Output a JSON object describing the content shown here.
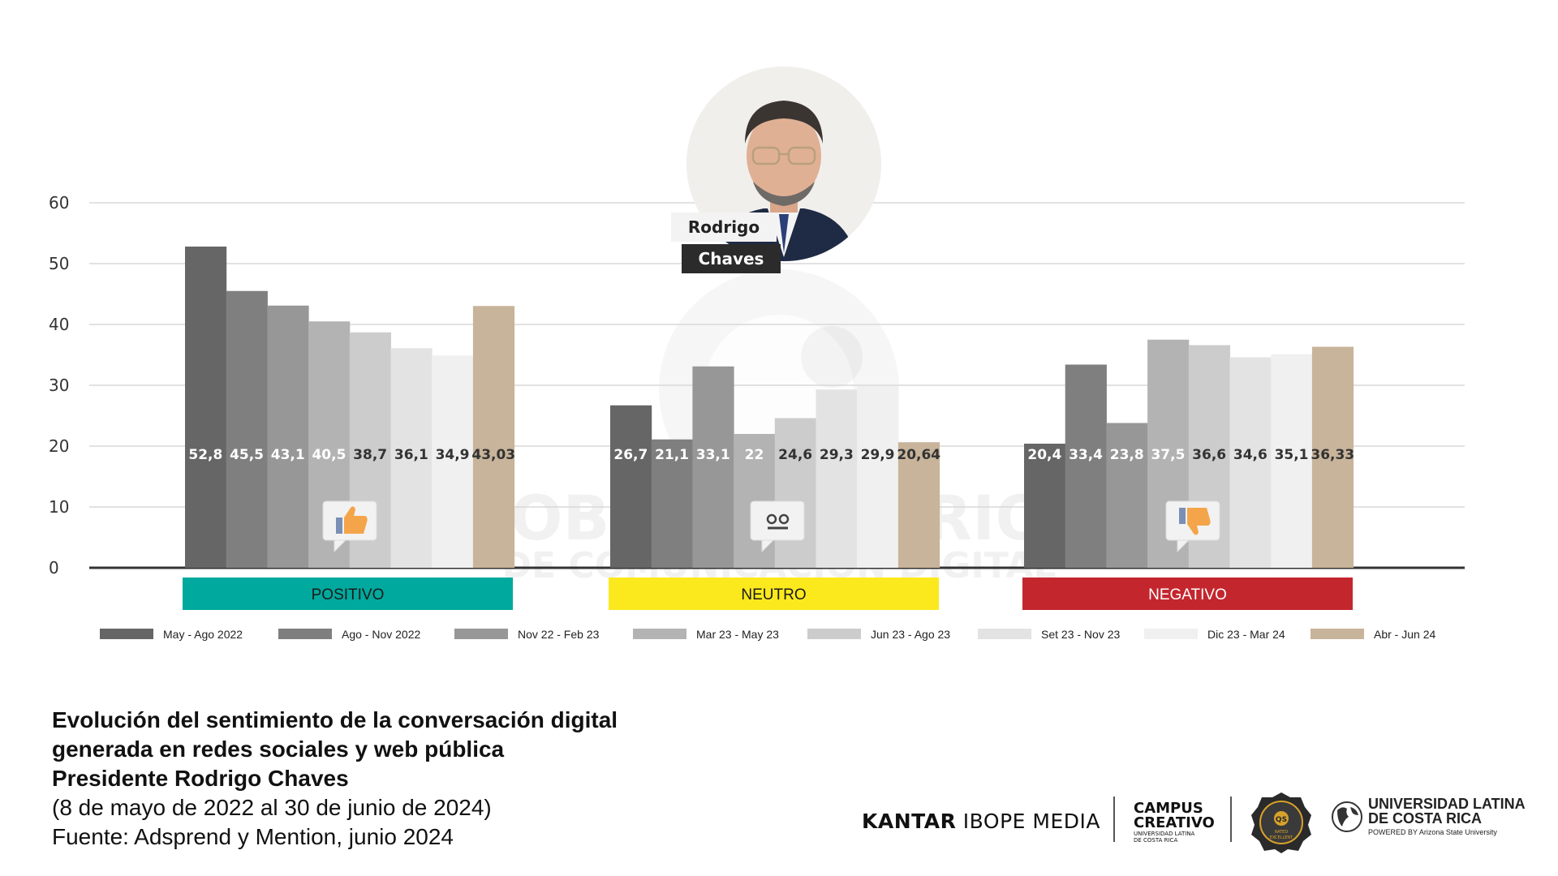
{
  "chart_data": {
    "type": "bar",
    "title": "",
    "xlabel": "",
    "ylabel": "",
    "ylim": [
      0,
      60
    ],
    "yticks": [
      0,
      10,
      20,
      30,
      40,
      50,
      60
    ],
    "grid": true,
    "legend_position": "bottom",
    "categories": [
      "POSITIVO",
      "NEUTRO",
      "NEGATIVO"
    ],
    "category_colors": [
      "#00a99d",
      "#fbe91d",
      "#c4262e"
    ],
    "category_text_colors": [
      "#1a1a1a",
      "#1a1a1a",
      "#ffffff"
    ],
    "series": [
      {
        "name": "May - Ago 2022",
        "color": "#666666",
        "label_color": "#ffffff",
        "values": [
          52.8,
          26.7,
          20.4
        ],
        "labels": [
          "52,8",
          "26,7",
          "20,4"
        ]
      },
      {
        "name": "Ago - Nov 2022",
        "color": "#7f7f7f",
        "label_color": "#ffffff",
        "values": [
          45.5,
          21.1,
          33.4
        ],
        "labels": [
          "45,5",
          "21,1",
          "33,4"
        ]
      },
      {
        "name": "Nov 22 - Feb 23",
        "color": "#979797",
        "label_color": "#ffffff",
        "values": [
          43.1,
          33.1,
          23.8
        ],
        "labels": [
          "43,1",
          "33,1",
          "23,8"
        ]
      },
      {
        "name": "Mar 23 - May 23",
        "color": "#b3b3b3",
        "label_color": "#ffffff",
        "values": [
          40.5,
          22,
          37.5
        ],
        "labels": [
          "40,5",
          "22",
          "37,5"
        ]
      },
      {
        "name": "Jun 23 - Ago 23",
        "color": "#cccccc",
        "label_color": "#333333",
        "values": [
          38.7,
          24.6,
          36.6
        ],
        "labels": [
          "38,7",
          "24,6",
          "36,6"
        ]
      },
      {
        "name": "Set 23 - Nov 23",
        "color": "#e3e3e3",
        "label_color": "#333333",
        "values": [
          36.1,
          29.3,
          34.6
        ],
        "labels": [
          "36,1",
          "29,3",
          "34,6"
        ]
      },
      {
        "name": "Dic 23 - Mar 24",
        "color": "#f0f0f0",
        "label_color": "#333333",
        "values": [
          34.9,
          29.9,
          35.1
        ],
        "labels": [
          "34,9",
          "29,9",
          "35,1"
        ]
      },
      {
        "name": "Abr - Jun 24",
        "color": "#c8b49a",
        "label_color": "#333333",
        "values": [
          43.03,
          20.64,
          36.33
        ],
        "labels": [
          "43,03",
          "20,64",
          "36,33"
        ]
      }
    ]
  },
  "portrait": {
    "first_name": "Rodrigo",
    "last_name": "Chaves"
  },
  "watermark": {
    "line1": "OBSERVATORIO",
    "line2": "DE COMUNICACIÓN DIGITAL"
  },
  "caption": {
    "title_line1": "Evolución del sentimiento de la conversación digital",
    "title_line2": "generada en redes sociales y web pública",
    "title_line3": "Presidente Rodrigo Chaves",
    "date_range": "(8 de mayo de 2022 al 30 de junio de 2024)",
    "source": "Fuente: Adsprend y Mention, junio 2024"
  },
  "logos": {
    "kantar_bold": "KANTAR",
    "kantar_rest": " IBOPE MEDIA",
    "campus_line1": "CAMPUS",
    "campus_line2": "CREATIVO",
    "campus_line3": "UNIVERSIDAD LATINA",
    "campus_line4": "DE COSTA RICA",
    "badge_text": "QS",
    "badge_sub1": "RATED",
    "badge_sub2": "EXCELLENT",
    "ulatina_line1": "UNIVERSIDAD LATINA",
    "ulatina_line2": "DE COSTA RICA",
    "ulatina_line3": "POWERED BY Arizona State University"
  }
}
